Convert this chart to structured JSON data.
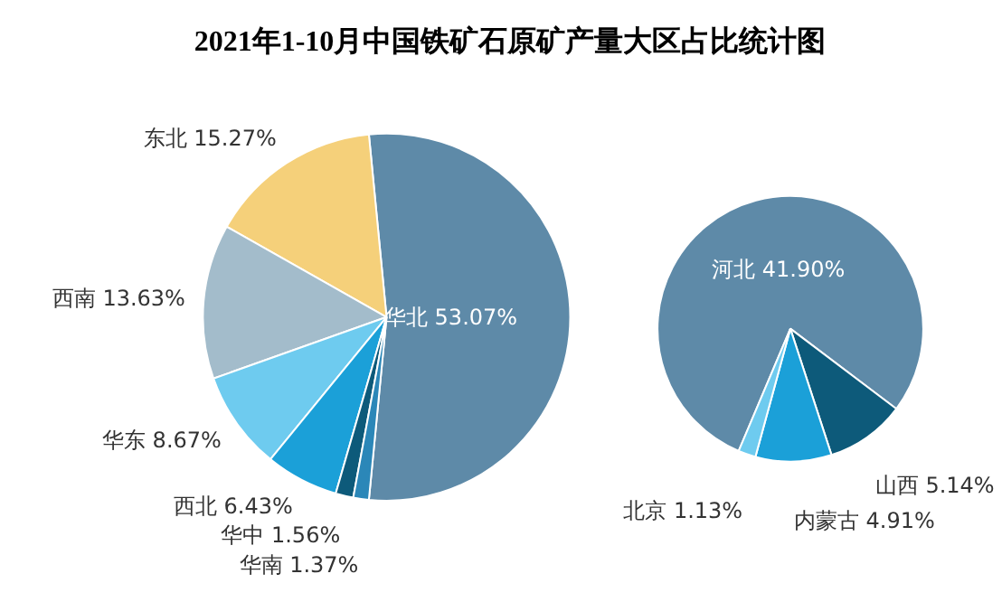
{
  "chart_data": [
    {
      "type": "pie",
      "title": "2021年1-10月中国铁矿石原矿产量大区占比统计图",
      "categories": [
        "华北",
        "东北",
        "西南",
        "华东",
        "西北",
        "华中",
        "华南"
      ],
      "values": [
        53.07,
        15.27,
        13.63,
        8.67,
        6.43,
        1.56,
        1.37
      ],
      "colors": [
        "#5e8aa8",
        "#f5d07a",
        "#a3bccb",
        "#6ecbef",
        "#1ba0d8",
        "#0d5a7a",
        "#2b87b8"
      ],
      "value_labels": [
        "53.07%",
        "15.27%",
        "13.63%",
        "8.67%",
        "6.43%",
        "1.56%",
        "1.37%"
      ]
    },
    {
      "type": "pie",
      "categories": [
        "河北",
        "山西",
        "内蒙古",
        "北京"
      ],
      "values": [
        41.9,
        5.14,
        4.91,
        1.13
      ],
      "colors": [
        "#5e8aa8",
        "#0d5a7a",
        "#1ba0d8",
        "#6ecbef"
      ],
      "value_labels": [
        "41.90%",
        "5.14%",
        "4.91%",
        "1.13%"
      ]
    }
  ]
}
